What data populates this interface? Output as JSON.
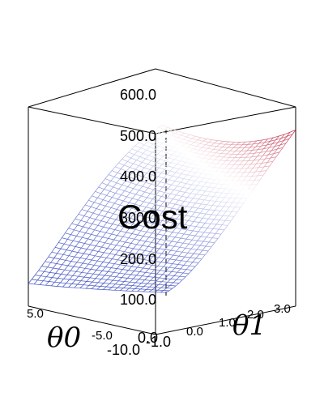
{
  "chart_data": {
    "type": "surface",
    "title": "",
    "zlabel": "Cost",
    "xlabel": "θ0",
    "ylabel": "θ1",
    "x_ticks": [
      "5.0",
      "-5.0",
      "-10.0"
    ],
    "y_ticks": [
      "-1.0",
      "0.0",
      "1.0",
      "2.0",
      "3.0"
    ],
    "z_ticks": [
      "0.0",
      "100.0",
      "200.0",
      "300.0",
      "400.0",
      "500.0",
      "600.0"
    ],
    "xlim": [
      -10,
      10
    ],
    "ylim": [
      -1,
      4
    ],
    "zlim": [
      0,
      650
    ],
    "colormap": [
      "#3b4cc0",
      "#ffffff",
      "#b40426"
    ],
    "surface": {
      "z_min": 5,
      "z_max": 520,
      "x_grid": 40,
      "y_grid": 24
    }
  }
}
